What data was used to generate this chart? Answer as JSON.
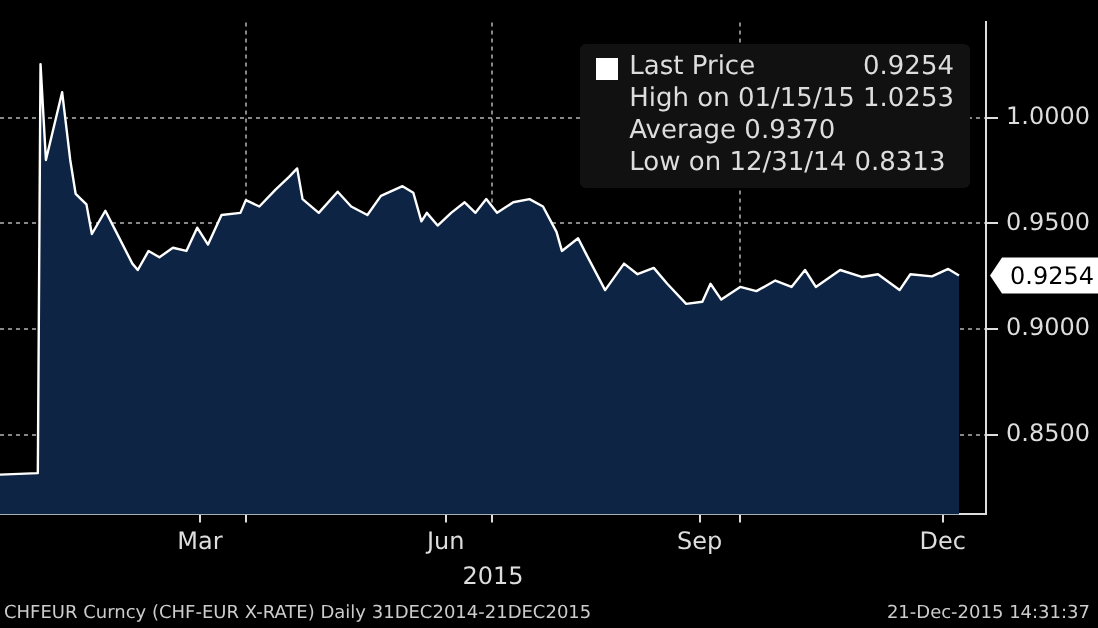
{
  "chart_data": {
    "type": "area",
    "xlabel": "2015",
    "legend": "top right",
    "grid": true,
    "xlim": [
      "2014-12-31",
      "2015-12-31"
    ],
    "xticks": [
      {
        "value": "2015-03-15",
        "label": "Mar"
      },
      {
        "value": "2015-04-01",
        "label": null
      },
      {
        "value": "2015-06-14",
        "label": "Jun"
      },
      {
        "value": "2015-07-01",
        "label": null
      },
      {
        "value": "2015-09-16",
        "label": "Sep"
      },
      {
        "value": "2015-10-01",
        "label": null
      },
      {
        "value": "2015-12-15",
        "label": "Dec"
      }
    ],
    "ylim": [
      0.8125,
      1.045
    ],
    "yticks": [
      {
        "value": 0.85,
        "label": "0.8500"
      },
      {
        "value": 0.9,
        "label": "0.9000"
      },
      {
        "value": 0.95,
        "label": "0.9500"
      },
      {
        "value": 1.0,
        "label": "1.0000"
      }
    ],
    "series": [
      {
        "name": "Last Price",
        "color": "#ffffff",
        "x": [
          "2014-12-31",
          "2015-01-14",
          "2015-01-15",
          "2015-01-17",
          "2015-01-23",
          "2015-01-26",
          "2015-01-28",
          "2015-02-01",
          "2015-02-03",
          "2015-02-08",
          "2015-02-12",
          "2015-02-18",
          "2015-02-20",
          "2015-02-24",
          "2015-02-28",
          "2015-03-05",
          "2015-03-10",
          "2015-03-14",
          "2015-03-18",
          "2015-03-23",
          "2015-03-30",
          "2015-04-01",
          "2015-04-06",
          "2015-04-12",
          "2015-04-17",
          "2015-04-20",
          "2015-04-22",
          "2015-04-28",
          "2015-05-05",
          "2015-05-10",
          "2015-05-16",
          "2015-05-21",
          "2015-05-29",
          "2015-06-02",
          "2015-06-05",
          "2015-06-07",
          "2015-06-11",
          "2015-06-16",
          "2015-06-21",
          "2015-06-25",
          "2015-06-29",
          "2015-07-03",
          "2015-07-09",
          "2015-07-15",
          "2015-07-20",
          "2015-07-25",
          "2015-07-27",
          "2015-08-02",
          "2015-08-05",
          "2015-08-12",
          "2015-08-19",
          "2015-08-24",
          "2015-08-30",
          "2015-09-04",
          "2015-09-11",
          "2015-09-17",
          "2015-09-20",
          "2015-09-24",
          "2015-10-01",
          "2015-10-07",
          "2015-10-14",
          "2015-10-20",
          "2015-10-25",
          "2015-10-29",
          "2015-11-07",
          "2015-11-15",
          "2015-11-21",
          "2015-11-29",
          "2015-12-03",
          "2015-12-11",
          "2015-12-17",
          "2015-12-21"
        ],
        "values": [
          0.8313,
          0.832,
          1.0253,
          0.98,
          1.012,
          0.98,
          0.964,
          0.959,
          0.945,
          0.956,
          0.946,
          0.931,
          0.928,
          0.937,
          0.934,
          0.9385,
          0.937,
          0.948,
          0.94,
          0.954,
          0.955,
          0.961,
          0.958,
          0.966,
          0.972,
          0.976,
          0.9615,
          0.955,
          0.965,
          0.958,
          0.954,
          0.963,
          0.9676,
          0.9645,
          0.951,
          0.955,
          0.949,
          0.955,
          0.96,
          0.955,
          0.9615,
          0.955,
          0.96,
          0.9615,
          0.958,
          0.946,
          0.937,
          0.943,
          0.9355,
          0.9185,
          0.931,
          0.926,
          0.929,
          0.9215,
          0.912,
          0.913,
          0.9215,
          0.914,
          0.92,
          0.918,
          0.923,
          0.92,
          0.928,
          0.92,
          0.928,
          0.9247,
          0.926,
          0.9185,
          0.926,
          0.925,
          0.9285,
          0.9254
        ]
      }
    ],
    "annotations": [
      "0.9254",
      "High on 01/15/15 1.0253",
      "Average 0.9370",
      "Low on 12/31/14 0.8313",
      "CHFEUR Curncy (CHF-EUR X-RATE)  Daily 31DEC2014-21DEC2015",
      "21-Dec-2015 14:31:37"
    ]
  }
}
